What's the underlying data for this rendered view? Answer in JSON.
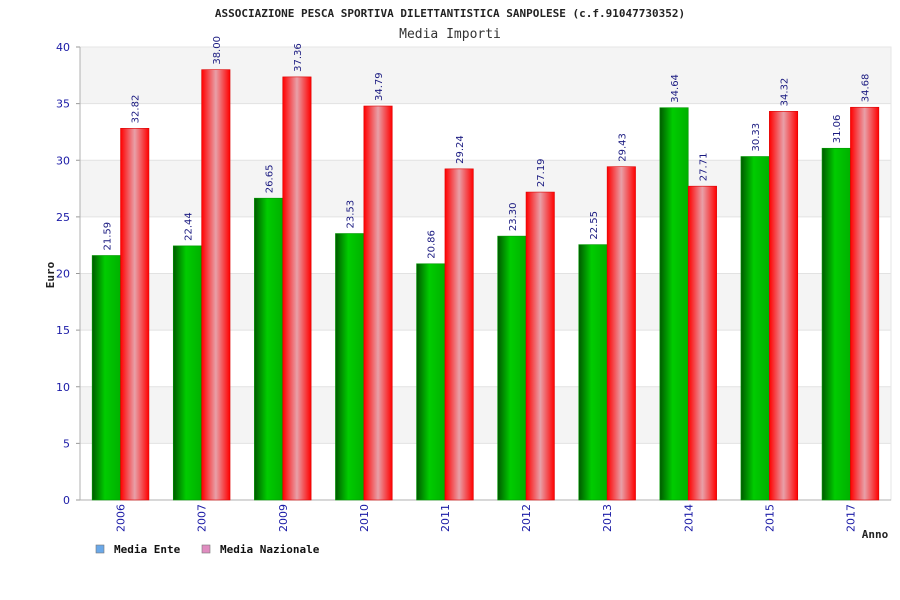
{
  "chart_data": {
    "type": "bar",
    "title": "ASSOCIAZIONE PESCA SPORTIVA DILETTANTISTICA SANPOLESE (c.f.91047730352)",
    "subtitle": "Media Importi",
    "xlabel": "Anno",
    "ylabel": "Euro",
    "ylim": [
      0,
      40
    ],
    "yticks": [
      "0",
      "5",
      "10",
      "15",
      "20",
      "25",
      "30",
      "35",
      "40"
    ],
    "categories": [
      "2006",
      "2007",
      "2009",
      "2010",
      "2011",
      "2012",
      "2013",
      "2014",
      "2015",
      "2017"
    ],
    "series": [
      {
        "name": "Media Ente",
        "color": "#00aa00",
        "legend_color": "#6aa8e8",
        "values": [
          21.59,
          22.44,
          26.65,
          23.53,
          20.86,
          23.3,
          22.55,
          34.64,
          30.33,
          31.06
        ],
        "labels": [
          "21.59",
          "22.44",
          "26.65",
          "23.53",
          "20.86",
          "23.30",
          "22.55",
          "34.64",
          "30.33",
          "31.06"
        ]
      },
      {
        "name": "Media Nazionale",
        "color": "#ee1111",
        "legend_color": "#e08cc0",
        "values": [
          32.82,
          38.0,
          37.36,
          34.79,
          29.24,
          27.19,
          29.43,
          27.71,
          34.32,
          34.68
        ],
        "labels": [
          "32.82",
          "38.00",
          "37.36",
          "34.79",
          "29.24",
          "27.19",
          "29.43",
          "27.71",
          "34.32",
          "34.68"
        ]
      }
    ],
    "grid": true,
    "legend_position": "bottom-left"
  }
}
